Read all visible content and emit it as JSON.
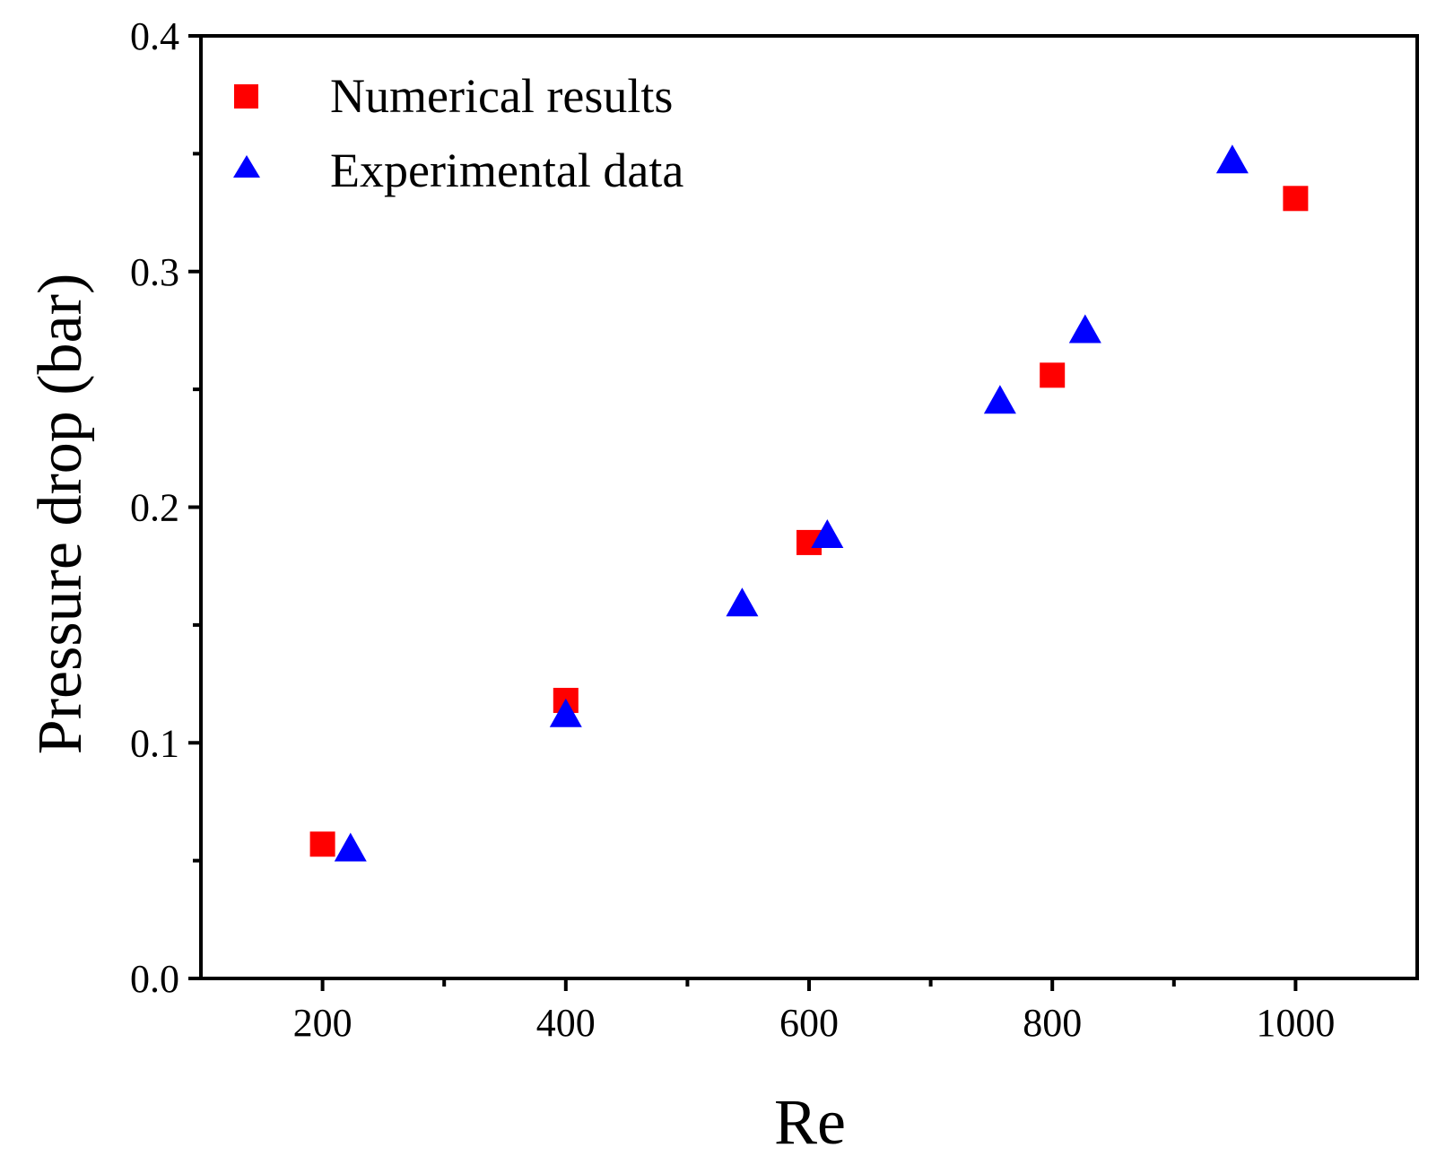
{
  "chart_data": {
    "type": "scatter",
    "title": "",
    "xlabel": "Re",
    "ylabel": "Pressure drop (bar)",
    "xlim": [
      100,
      1100
    ],
    "ylim": [
      0.0,
      0.4
    ],
    "grid": false,
    "legend_position": "top-left",
    "x_ticks": [
      "200",
      "400",
      "600",
      "800",
      "1000"
    ],
    "x_tick_values": [
      200,
      400,
      600,
      800,
      1000
    ],
    "y_ticks": [
      "0.0",
      "0.1",
      "0.2",
      "0.3",
      "0.4"
    ],
    "y_tick_values": [
      0.0,
      0.1,
      0.2,
      0.3,
      0.4
    ],
    "series": [
      {
        "name": "Numerical results",
        "marker": "square",
        "color": "#ff0000",
        "x": [
          200,
          400,
          600,
          800,
          1000
        ],
        "y": [
          0.057,
          0.118,
          0.185,
          0.256,
          0.331
        ]
      },
      {
        "name": "Experimental data",
        "marker": "triangle",
        "color": "#0000ff",
        "x": [
          223,
          400,
          545,
          615,
          757,
          827,
          948
        ],
        "y": [
          0.055,
          0.112,
          0.159,
          0.188,
          0.245,
          0.275,
          0.347
        ]
      }
    ]
  }
}
